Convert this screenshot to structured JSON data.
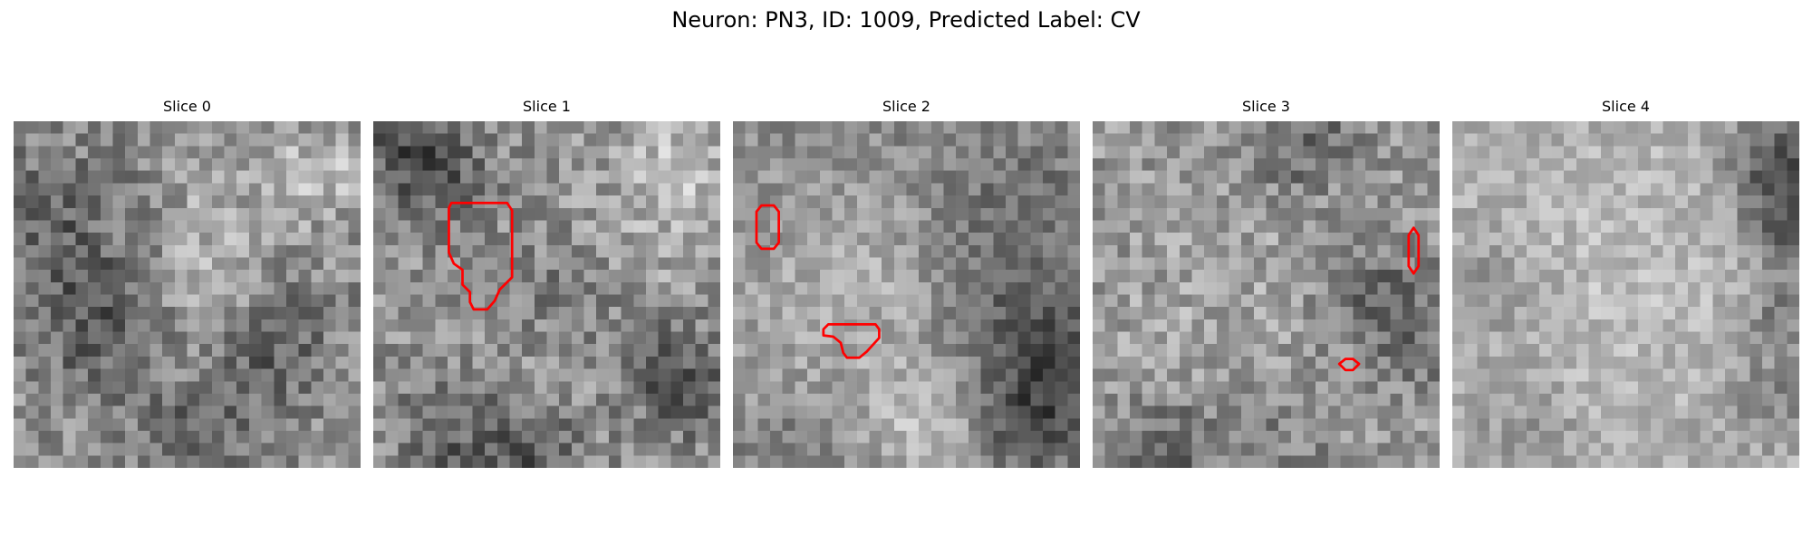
{
  "figure": {
    "title": "Neuron: PN3, ID: 1009, Predicted Label: CV",
    "colormap": "gray",
    "contour_color": "#ff0000",
    "grid_size": 28,
    "panels": [
      {
        "title": "Slice 0",
        "contours": []
      },
      {
        "title": "Slice 1",
        "contours": [
          [
            [
              6.1,
              7.0
            ],
            [
              6.3,
              6.6
            ],
            [
              10.8,
              6.6
            ],
            [
              11.2,
              7.2
            ],
            [
              11.2,
              12.6
            ],
            [
              10.2,
              13.6
            ],
            [
              9.8,
              14.5
            ],
            [
              9.2,
              15.2
            ],
            [
              8.1,
              15.2
            ],
            [
              7.8,
              14.6
            ],
            [
              7.8,
              13.8
            ],
            [
              7.2,
              13.2
            ],
            [
              7.2,
              12.0
            ],
            [
              6.5,
              11.5
            ],
            [
              6.1,
              10.6
            ]
          ]
        ]
      },
      {
        "title": "Slice 2",
        "contours": [
          [
            [
              1.9,
              7.3
            ],
            [
              2.3,
              6.8
            ],
            [
              3.3,
              6.8
            ],
            [
              3.7,
              7.3
            ],
            [
              3.7,
              9.8
            ],
            [
              3.3,
              10.3
            ],
            [
              2.3,
              10.3
            ],
            [
              1.9,
              9.8
            ]
          ],
          [
            [
              7.3,
              16.8
            ],
            [
              7.7,
              16.4
            ],
            [
              11.5,
              16.4
            ],
            [
              11.8,
              16.8
            ],
            [
              11.8,
              17.5
            ],
            [
              10.8,
              18.6
            ],
            [
              10.2,
              19.1
            ],
            [
              9.2,
              19.1
            ],
            [
              8.9,
              18.7
            ],
            [
              8.7,
              17.9
            ],
            [
              8.1,
              17.4
            ],
            [
              7.3,
              17.3
            ]
          ]
        ]
      },
      {
        "title": "Slice 3",
        "contours": [
          [
            [
              25.9,
              8.6
            ],
            [
              26.3,
              9.2
            ],
            [
              26.3,
              11.7
            ],
            [
              25.9,
              12.3
            ],
            [
              25.5,
              11.7
            ],
            [
              25.5,
              9.2
            ]
          ],
          [
            [
              19.9,
              19.6
            ],
            [
              20.4,
              19.2
            ],
            [
              21.0,
              19.2
            ],
            [
              21.5,
              19.6
            ],
            [
              21.0,
              20.1
            ],
            [
              20.4,
              20.1
            ]
          ]
        ]
      },
      {
        "title": "Slice 4",
        "contours": []
      }
    ]
  }
}
